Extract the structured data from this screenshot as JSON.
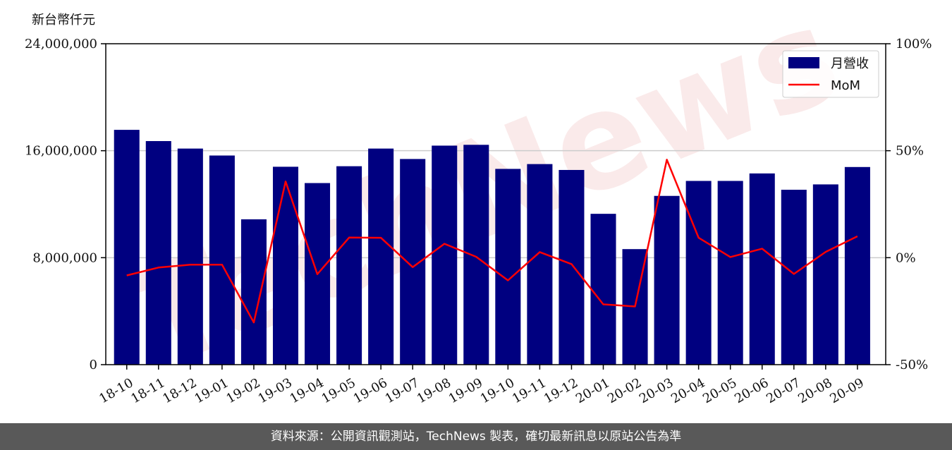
{
  "chart_data": {
    "type": "bar",
    "ylabel": "新台幣仟元",
    "categories": [
      "18-10",
      "18-11",
      "18-12",
      "19-01",
      "19-02",
      "19-03",
      "19-04",
      "19-05",
      "19-06",
      "19-07",
      "19-08",
      "19-09",
      "19-10",
      "19-11",
      "19-12",
      "20-01",
      "20-02",
      "20-03",
      "20-04",
      "20-05",
      "20-06",
      "20-07",
      "20-08",
      "20-09"
    ],
    "series": [
      {
        "name": "月營收",
        "type": "bar",
        "axis": "left",
        "color": "#000080",
        "values": [
          17560000,
          16720000,
          16160000,
          15640000,
          10870000,
          14800000,
          13580000,
          14840000,
          16160000,
          15380000,
          16380000,
          16440000,
          14640000,
          15000000,
          14560000,
          11280000,
          8640000,
          12620000,
          13740000,
          13740000,
          14300000,
          13080000,
          13480000,
          14780000
        ]
      },
      {
        "name": "MoM",
        "type": "line",
        "axis": "right",
        "color": "#ff0000",
        "values": [
          -8.3,
          -4.6,
          -3.3,
          -3.3,
          -30.3,
          35.6,
          -7.7,
          9.4,
          9.3,
          -4.4,
          6.5,
          0.4,
          -10.6,
          2.6,
          -3.0,
          -21.8,
          -22.8,
          45.8,
          9.3,
          0.3,
          4.2,
          -7.6,
          2.7,
          10.0
        ]
      }
    ],
    "ylim": [
      0,
      24000000
    ],
    "y2lim": [
      -50,
      100
    ],
    "yticks": [
      "0",
      "8,000,000",
      "16,000,000",
      "24,000,000"
    ],
    "ytick_values": [
      0,
      8000000,
      16000000,
      24000000
    ],
    "y2ticks": [
      "-50%",
      "0%",
      "50%",
      "100%"
    ],
    "y2tick_values": [
      -50,
      0,
      50,
      100
    ],
    "grid": "horizontal",
    "legend": "top-right",
    "watermark": "TechNews"
  },
  "footer": {
    "text": "資料來源：公開資訊觀測站，TechNews 製表，確切最新訊息以原站公告為準"
  }
}
